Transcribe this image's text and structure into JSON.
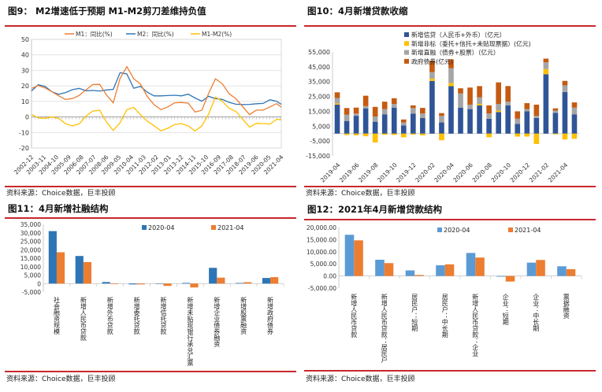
{
  "panels": [
    {
      "title": "图9：  M2增速低于预期 M1-M2剪刀差维持负值",
      "source": "资料来源：Choice数据，巨丰投顾"
    },
    {
      "title": "图10：4月新增贷款收缩",
      "source": "资料来源：Choice数据，巨丰投顾"
    },
    {
      "title": "图11：4月新增社融结构",
      "source": "资料来源：Choice数据，巨丰投顾"
    },
    {
      "title": "图12：2021年4月新增贷款结构",
      "source": "资料来源：Choice数据，巨丰投顾"
    }
  ],
  "chart_data": [
    {
      "type": "line",
      "title": "M2增速低于预期 M1-M2剪刀差维持负值",
      "ylim": [
        -20,
        50
      ],
      "yticks": [
        "50",
        "40",
        "30",
        "20",
        "10",
        "0",
        "-10",
        "-20"
      ],
      "xtick_labels": [
        "2002-12",
        "2003-11",
        "2004-10",
        "2005-09",
        "2006-08",
        "2007-07",
        "2008-06",
        "2009-05",
        "2010-04",
        "2011-03",
        "2012-02",
        "2013-01",
        "2013-12",
        "2014-11",
        "2015-10",
        "2016-09",
        "2017-08",
        "2018-07",
        "2019-06",
        "2020-05",
        "2021-04"
      ],
      "x": [
        "2002-12",
        "2003-06",
        "2003-12",
        "2004-06",
        "2004-12",
        "2005-06",
        "2005-12",
        "2006-06",
        "2006-12",
        "2007-06",
        "2007-12",
        "2008-06",
        "2008-12",
        "2009-06",
        "2009-12",
        "2010-06",
        "2010-12",
        "2011-06",
        "2011-12",
        "2012-06",
        "2012-12",
        "2013-06",
        "2013-12",
        "2014-06",
        "2014-12",
        "2015-06",
        "2015-12",
        "2016-06",
        "2016-12",
        "2017-06",
        "2017-12",
        "2018-06",
        "2018-12",
        "2019-06",
        "2019-12",
        "2020-06",
        "2020-12",
        "2021-04"
      ],
      "series": [
        {
          "name": "M1：同比(%)",
          "color": "#ed7d31",
          "values": [
            18.4,
            20.2,
            18.7,
            16.2,
            13.6,
            11.3,
            11.8,
            13.9,
            17.5,
            20.9,
            21.0,
            14.2,
            9.1,
            24.8,
            32.4,
            24.6,
            21.2,
            13.1,
            7.9,
            4.7,
            6.5,
            9.1,
            9.3,
            8.9,
            3.2,
            4.3,
            15.2,
            24.6,
            21.4,
            15.0,
            11.8,
            6.6,
            1.5,
            4.4,
            4.4,
            6.5,
            8.6,
            6.2
          ]
        },
        {
          "name": "M2：同比(%)",
          "color": "#2e75b6",
          "values": [
            16.8,
            20.8,
            19.6,
            16.2,
            14.6,
            15.7,
            17.6,
            18.4,
            16.9,
            17.1,
            16.7,
            17.4,
            17.8,
            28.5,
            27.7,
            18.5,
            19.7,
            15.9,
            13.6,
            13.6,
            13.8,
            14.0,
            13.6,
            14.7,
            12.2,
            10.2,
            13.3,
            11.8,
            11.3,
            9.4,
            8.2,
            8.0,
            8.1,
            8.5,
            8.7,
            11.1,
            10.1,
            8.1
          ]
        },
        {
          "name": "M1-M2(%)",
          "color": "#ffc000",
          "values": [
            1.6,
            -0.6,
            -0.9,
            0.0,
            -1.0,
            -4.4,
            -5.8,
            -4.5,
            0.6,
            3.8,
            4.3,
            -3.2,
            -8.7,
            -3.7,
            4.7,
            6.1,
            1.5,
            -2.8,
            -5.7,
            -8.9,
            -7.3,
            -4.9,
            -4.3,
            -5.8,
            -9.0,
            -5.9,
            1.9,
            12.8,
            10.1,
            5.6,
            3.6,
            -1.4,
            -6.6,
            -4.1,
            -4.3,
            -4.6,
            -1.5,
            -1.9
          ]
        }
      ],
      "grid": true,
      "legend": "top"
    },
    {
      "type": "bar",
      "stacked": true,
      "title": "4月新增贷款收缩",
      "ylim": [
        -15000,
        55000
      ],
      "yticks": [
        "55,000",
        "45,000",
        "35,000",
        "25,000",
        "15,000",
        "5,000",
        "-5,000",
        "-15,000"
      ],
      "categories": [
        "2019-04",
        "2019-05",
        "2019-06",
        "2019-07",
        "2019-08",
        "2019-09",
        "2019-10",
        "2019-11",
        "2019-12",
        "2020-01",
        "2020-02",
        "2020-03",
        "2020-04",
        "2020-05",
        "2020-06",
        "2020-07",
        "2020-08",
        "2020-09",
        "2020-10",
        "2020-11",
        "2020-12",
        "2021-01",
        "2021-02",
        "2021-03",
        "2021-04",
        "2021-05"
      ],
      "xtick_labels": [
        "2019-04",
        "2019-06",
        "2019-08",
        "2019-10",
        "2019-12",
        "2020-02",
        "2020-04",
        "2020-06",
        "2020-08",
        "2020-10",
        "2020-12",
        "2021-02",
        "2021-04"
      ],
      "series": [
        {
          "name": "新增信贷（人民币+外币）（亿元）",
          "color": "#2f5597",
          "values": [
            19500,
            8500,
            12000,
            17000,
            8000,
            13000,
            17500,
            5500,
            13500,
            10500,
            35500,
            7500,
            32000,
            17500,
            16500,
            19000,
            10000,
            14500,
            19000,
            6500,
            15000,
            10500,
            40000,
            14000,
            28000,
            13000
          ]
        },
        {
          "name": "新增非标（委托+信托+未贴现票据）(亿元)",
          "color": "#ffc000",
          "values": [
            800,
            -1000,
            -1200,
            -1800,
            -6000,
            -800,
            -900,
            -2500,
            -700,
            -1200,
            1500,
            -4500,
            2000,
            0,
            0,
            1000,
            -2500,
            1000,
            0,
            -2000,
            -2000,
            -7000,
            3500,
            -500,
            -4000,
            -3500
          ]
        },
        {
          "name": "新增直融（债券+股票）（亿元）",
          "color": "#a5a5a5",
          "values": [
            3700,
            4200,
            1500,
            1500,
            3500,
            3500,
            2500,
            2000,
            3700,
            3000,
            4500,
            4500,
            10000,
            9500,
            3000,
            4500,
            3500,
            4500,
            2500,
            3500,
            1500,
            1500,
            4500,
            1500,
            4500,
            4500
          ]
        },
        {
          "name": "政府债券(亿元)",
          "color": "#c55a11",
          "values": [
            3800,
            4500,
            4000,
            7000,
            6500,
            5000,
            3800,
            2000,
            1800,
            3800,
            7500,
            1800,
            6000,
            3500,
            11500,
            7500,
            5500,
            14500,
            10500,
            5000,
            4000,
            7500,
            2500,
            1500,
            3000,
            3500
          ]
        }
      ],
      "legend": "top-left"
    },
    {
      "type": "bar",
      "title": "4月新增社融结构",
      "ylim": [
        -5000,
        35000
      ],
      "yticks": [
        "35,000",
        "30,000",
        "25,000",
        "20,000",
        "15,000",
        "10,000",
        "5,000",
        "0",
        "-5,000"
      ],
      "categories": [
        "社会融资规模",
        "新增人民币贷款",
        "新增外币贷款",
        "新增委托贷款",
        "新增信托贷款",
        "新增未贴现银行承兑汇票",
        "新增企业债券融资",
        "新增股票融资",
        "新增政府债券"
      ],
      "series": [
        {
          "name": "2020-04",
          "color": "#2e75b6",
          "values": [
            31000,
            16300,
            900,
            -500,
            -40,
            400,
            9300,
            340,
            3300
          ]
        },
        {
          "name": "2021-04",
          "color": "#ed7d31",
          "values": [
            18500,
            12700,
            -300,
            -500,
            -1400,
            -2300,
            3500,
            820,
            3800
          ]
        }
      ],
      "legend": "top"
    },
    {
      "type": "bar",
      "title": "2021年4月新增贷款结构",
      "ylim": [
        -5000,
        20000
      ],
      "yticks": [
        "20,000.00",
        "15,000.00",
        "10,000.00",
        "5,000.00",
        "0.00",
        "-5,000.00"
      ],
      "categories": [
        "新增人民币贷款",
        "新增人民币贷款：居民户",
        "居民户：短期",
        "居民户：中长期",
        "新增人民币贷款：企业",
        "企业：短期",
        "企业：中长期",
        "票据融资"
      ],
      "series": [
        {
          "name": "2020-04",
          "color": "#5b9bd5",
          "values": [
            17000,
            6700,
            2300,
            4400,
            9500,
            -300,
            5500,
            4000
          ]
        },
        {
          "name": "2021-04",
          "color": "#ed7d31",
          "values": [
            14700,
            5300,
            400,
            4800,
            7600,
            -2300,
            6600,
            2800
          ]
        }
      ],
      "legend": "top"
    }
  ]
}
